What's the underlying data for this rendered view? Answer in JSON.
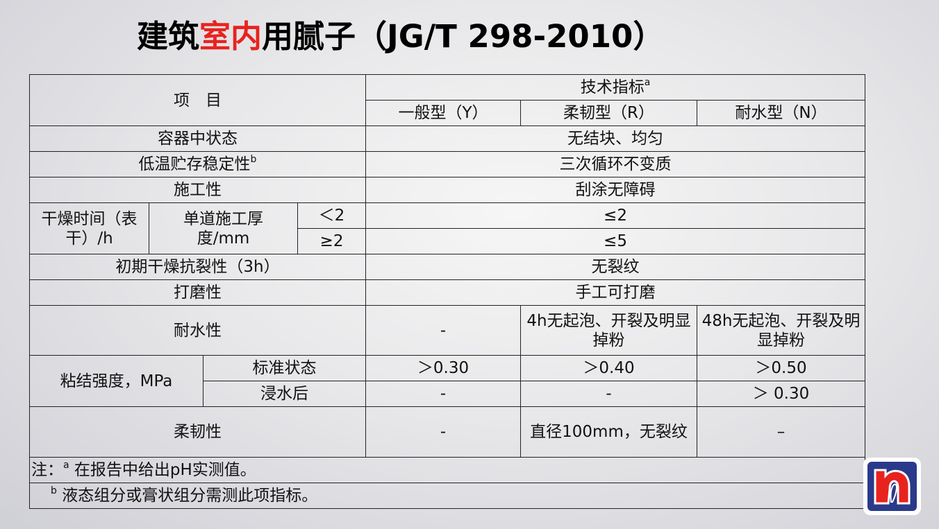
{
  "title": {
    "part1": "建筑",
    "highlight": "室内",
    "part2": "用腻子（JG/T 298-2010）",
    "highlight_color": "#e8231e"
  },
  "table": {
    "header": {
      "item": "项　目",
      "tech": "技术指标",
      "tech_sup": "a",
      "types": [
        "一般型（Y）",
        "柔韧型（R）",
        "耐水型（N）"
      ]
    },
    "rows": {
      "state": {
        "label": "容器中状态",
        "value": "无结块、均匀"
      },
      "low_temp": {
        "label": "低温贮存稳定性",
        "sup": "b",
        "value": "三次循环不变质"
      },
      "workability": {
        "label": "施工性",
        "value": "刮涂无障碍"
      },
      "drying": {
        "label": "干燥时间（表干）/h",
        "sub_label": "单道施工厚度/mm",
        "sub1": "＜2",
        "val1": "≤2",
        "sub2": "≥2",
        "val2": "≤5"
      },
      "crack": {
        "label": "初期干燥抗裂性（3h）",
        "value": "无裂纹"
      },
      "sanding": {
        "label": "打磨性",
        "value": "手工可打磨"
      },
      "water": {
        "label": "耐水性",
        "values": [
          "-",
          "4h无起泡、开裂及明显掉粉",
          "48h无起泡、开裂及明显掉粉"
        ]
      },
      "bond": {
        "label": "粘结强度，MPa",
        "std_label": "标准状态",
        "std_values": [
          "＞0.30",
          "＞0.40",
          "＞0.50"
        ],
        "soak_label": "浸水后",
        "soak_values": [
          "-",
          "-",
          "＞ 0.30"
        ]
      },
      "flex": {
        "label": "柔韧性",
        "values": [
          "-",
          "直径100mm，无裂纹",
          "–"
        ]
      }
    },
    "notes": {
      "a_prefix": "注：",
      "a_sup": "a",
      "a": "在报告中给出pH实测值。",
      "b_sup": "b",
      "b": "液态组分或膏状组分需测此项指标。"
    }
  },
  "logo": {
    "letter": "n",
    "colors": {
      "bg": "#2a3a8a",
      "letter": "#e8231e"
    }
  }
}
